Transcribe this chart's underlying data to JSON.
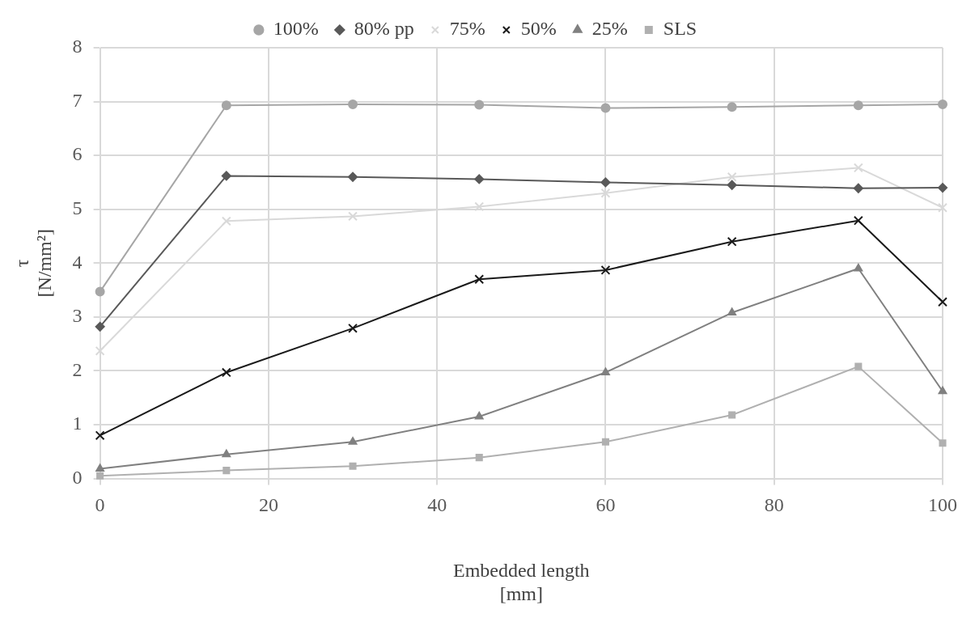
{
  "chart_data": {
    "type": "line",
    "xlabel": "Embedded length\n[mm]",
    "ylabel": "τ\n[N/mm²]",
    "x": [
      0,
      15,
      30,
      45,
      60,
      75,
      90,
      100
    ],
    "xlim": [
      0,
      100
    ],
    "xticks": [
      0,
      20,
      40,
      60,
      80,
      100
    ],
    "ylim": [
      0,
      8
    ],
    "yticks": [
      0,
      1,
      2,
      3,
      4,
      5,
      6,
      7,
      8
    ],
    "grid": true,
    "legend": "top",
    "series": [
      {
        "name": "100%",
        "color": "#a6a6a6",
        "marker": "circle",
        "values": [
          3.47,
          6.93,
          6.95,
          6.94,
          6.88,
          6.9,
          6.93,
          6.95
        ]
      },
      {
        "name": "80% pp",
        "color": "#595959",
        "marker": "diamond",
        "values": [
          2.82,
          5.62,
          5.6,
          5.56,
          5.5,
          5.45,
          5.39,
          5.4
        ]
      },
      {
        "name": "75%",
        "color": "#d9d9d9",
        "marker": "cross",
        "values": [
          2.37,
          4.78,
          4.87,
          5.05,
          5.3,
          5.6,
          5.77,
          5.03
        ]
      },
      {
        "name": "50%",
        "color": "#1a1a1a",
        "marker": "cross",
        "values": [
          0.8,
          1.97,
          2.79,
          3.7,
          3.87,
          4.4,
          4.79,
          3.28
        ]
      },
      {
        "name": "25%",
        "color": "#808080",
        "marker": "triangle",
        "values": [
          0.18,
          0.45,
          0.68,
          1.15,
          1.97,
          3.08,
          3.9,
          1.62
        ]
      },
      {
        "name": "SLS",
        "color": "#b0b0b0",
        "marker": "square",
        "values": [
          0.05,
          0.15,
          0.23,
          0.39,
          0.68,
          1.18,
          2.08,
          0.66
        ]
      }
    ]
  }
}
